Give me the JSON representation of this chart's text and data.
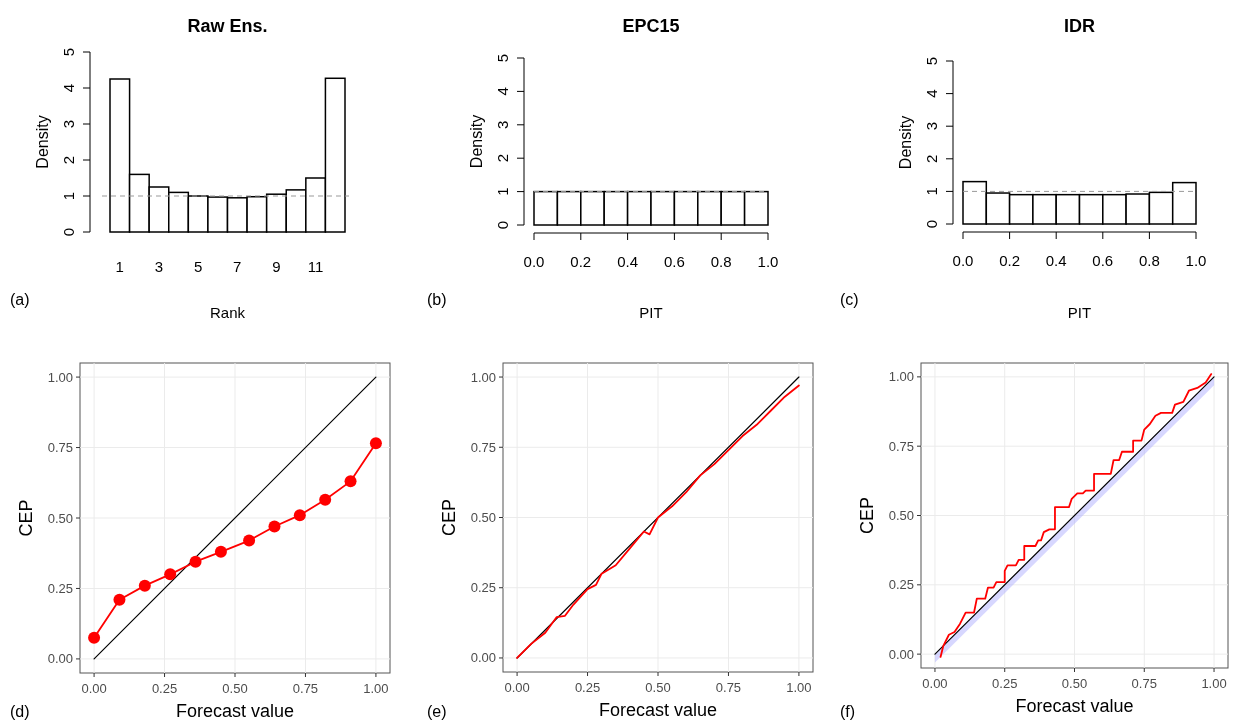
{
  "chart_data": [
    {
      "type": "bar",
      "title": "Raw Ens.",
      "xlabel": "Rank",
      "ylabel": "Density",
      "categories": [
        "1",
        null,
        "3",
        null,
        "5",
        null,
        "7",
        null,
        "9",
        null,
        "11",
        null
      ],
      "values": [
        4.25,
        1.6,
        1.25,
        1.1,
        1.0,
        0.97,
        0.95,
        0.98,
        1.05,
        1.17,
        1.5,
        4.27
      ],
      "color": "#ffffff",
      "ylim": [
        0,
        5
      ],
      "yticks": [
        0,
        1,
        2,
        3,
        4,
        5
      ],
      "ref_lines": [
        {
          "axis": "y",
          "value": 1,
          "color": "#999999",
          "line_style": "dashed"
        }
      ],
      "annotations": [
        "(a)"
      ]
    },
    {
      "type": "histogram",
      "title": "EPC15",
      "xlabel": "PIT",
      "ylabel": "Density",
      "bins": [
        0,
        0.1,
        0.2,
        0.3,
        0.4,
        0.5,
        0.6,
        0.7,
        0.8,
        0.9,
        1.0
      ],
      "values": [
        1.0,
        1.0,
        1.0,
        1.0,
        1.0,
        1.0,
        1.0,
        1.0,
        1.0,
        1.0
      ],
      "color": "#ffffff",
      "xlim": [
        0,
        1
      ],
      "xticks": [
        {
          "value": 0,
          "label": "0.0"
        },
        {
          "value": 0.2,
          "label": "0.2"
        },
        {
          "value": 0.4,
          "label": "0.4"
        },
        {
          "value": 0.6,
          "label": "0.6"
        },
        {
          "value": 0.8,
          "label": "0.8"
        },
        {
          "value": 1,
          "label": "1.0"
        }
      ],
      "ylim": [
        0,
        5
      ],
      "yticks": [
        0,
        1,
        2,
        3,
        4,
        5
      ],
      "ref_lines": [
        {
          "axis": "y",
          "value": 1,
          "color": "#999999",
          "line_style": "dashed"
        }
      ],
      "annotations": [
        "(b)"
      ]
    },
    {
      "type": "histogram",
      "title": "IDR",
      "xlabel": "PIT",
      "ylabel": "Density",
      "bins": [
        0,
        0.1,
        0.2,
        0.3,
        0.4,
        0.5,
        0.6,
        0.7,
        0.8,
        0.9,
        1.0
      ],
      "values": [
        1.3,
        0.95,
        0.9,
        0.9,
        0.9,
        0.9,
        0.9,
        0.92,
        0.97,
        1.27
      ],
      "color": "#ffffff",
      "xlim": [
        0,
        1
      ],
      "xticks": [
        {
          "value": 0,
          "label": "0.0"
        },
        {
          "value": 0.2,
          "label": "0.2"
        },
        {
          "value": 0.4,
          "label": "0.4"
        },
        {
          "value": 0.6,
          "label": "0.6"
        },
        {
          "value": 0.8,
          "label": "0.8"
        },
        {
          "value": 1,
          "label": "1.0"
        }
      ],
      "ylim": [
        0,
        5
      ],
      "yticks": [
        0,
        1,
        2,
        3,
        4,
        5
      ],
      "ref_lines": [
        {
          "axis": "y",
          "value": 1,
          "color": "#999999",
          "line_style": "dashed"
        }
      ],
      "annotations": [
        "(c)"
      ]
    },
    {
      "type": "line",
      "xlabel": "Forecast value",
      "ylabel": "CEP",
      "grid": true,
      "marker": "circle",
      "xlim": [
        -0.05,
        1.05
      ],
      "ylim": [
        -0.05,
        1.05
      ],
      "xticks": [
        {
          "value": 0,
          "label": "0.00"
        },
        {
          "value": 0.25,
          "label": "0.25"
        },
        {
          "value": 0.5,
          "label": "0.50"
        },
        {
          "value": 0.75,
          "label": "0.75"
        },
        {
          "value": 1,
          "label": "1.00"
        }
      ],
      "yticks": [
        {
          "value": 0,
          "label": "0.00"
        },
        {
          "value": 0.25,
          "label": "0.25"
        },
        {
          "value": 0.5,
          "label": "0.50"
        },
        {
          "value": 0.75,
          "label": "0.75"
        },
        {
          "value": 1,
          "label": "1.00"
        }
      ],
      "series": [
        {
          "color": "#000000",
          "marker": "none",
          "x": [
            0,
            1
          ],
          "values": [
            0,
            1
          ]
        },
        {
          "color": "#ff0000",
          "x": [
            0,
            0.09,
            0.18,
            0.27,
            0.36,
            0.45,
            0.55,
            0.64,
            0.73,
            0.82,
            0.91,
            1.0
          ],
          "values": [
            0.075,
            0.21,
            0.26,
            0.3,
            0.345,
            0.38,
            0.42,
            0.47,
            0.51,
            0.565,
            0.63,
            0.765
          ]
        }
      ],
      "annotations": [
        "(d)"
      ]
    },
    {
      "type": "line",
      "xlabel": "Forecast value",
      "ylabel": "CEP",
      "grid": true,
      "marker": "none",
      "xlim": [
        -0.05,
        1.05
      ],
      "ylim": [
        -0.05,
        1.05
      ],
      "xticks": [
        {
          "value": 0,
          "label": "0.00"
        },
        {
          "value": 0.25,
          "label": "0.25"
        },
        {
          "value": 0.5,
          "label": "0.50"
        },
        {
          "value": 0.75,
          "label": "0.75"
        },
        {
          "value": 1,
          "label": "1.00"
        }
      ],
      "yticks": [
        {
          "value": 0,
          "label": "0.00"
        },
        {
          "value": 0.25,
          "label": "0.25"
        },
        {
          "value": 0.5,
          "label": "0.50"
        },
        {
          "value": 0.75,
          "label": "0.75"
        },
        {
          "value": 1,
          "label": "1.00"
        }
      ],
      "series": [
        {
          "color": "#000000",
          "x": [
            0,
            1
          ],
          "values": [
            0,
            1
          ]
        },
        {
          "color": "#ff0000",
          "x": [
            0,
            0.05,
            0.1,
            0.14,
            0.17,
            0.2,
            0.25,
            0.28,
            0.3,
            0.35,
            0.4,
            0.45,
            0.47,
            0.5,
            0.55,
            0.6,
            0.65,
            0.7,
            0.75,
            0.8,
            0.85,
            0.9,
            0.95,
            1.0
          ],
          "values": [
            0,
            0.05,
            0.09,
            0.145,
            0.15,
            0.19,
            0.245,
            0.26,
            0.3,
            0.33,
            0.39,
            0.45,
            0.44,
            0.5,
            0.54,
            0.59,
            0.65,
            0.69,
            0.74,
            0.79,
            0.83,
            0.88,
            0.93,
            0.97
          ]
        }
      ],
      "annotations": [
        "(e)"
      ]
    },
    {
      "type": "line",
      "xlabel": "Forecast value",
      "ylabel": "CEP",
      "grid": true,
      "marker": "none",
      "xlim": [
        -0.05,
        1.05
      ],
      "ylim": [
        -0.05,
        1.05
      ],
      "xticks": [
        {
          "value": 0,
          "label": "0.00"
        },
        {
          "value": 0.25,
          "label": "0.25"
        },
        {
          "value": 0.5,
          "label": "0.50"
        },
        {
          "value": 0.75,
          "label": "0.75"
        },
        {
          "value": 1,
          "label": "1.00"
        }
      ],
      "yticks": [
        {
          "value": 0,
          "label": "0.00"
        },
        {
          "value": 0.25,
          "label": "0.25"
        },
        {
          "value": 0.5,
          "label": "0.50"
        },
        {
          "value": 0.75,
          "label": "0.75"
        },
        {
          "value": 1,
          "label": "1.00"
        }
      ],
      "series": [
        {
          "color": "#000000",
          "x": [
            0,
            1
          ],
          "values": [
            0,
            1
          ],
          "lower": [
            -0.03,
            0.97
          ],
          "upper": [
            0,
            1
          ]
        },
        {
          "color": "#ff0000",
          "x": [
            0.02,
            0.03,
            0.05,
            0.07,
            0.09,
            0.11,
            0.14,
            0.15,
            0.18,
            0.19,
            0.21,
            0.22,
            0.25,
            0.25,
            0.26,
            0.29,
            0.3,
            0.32,
            0.32,
            0.36,
            0.37,
            0.38,
            0.39,
            0.41,
            0.43,
            0.43,
            0.48,
            0.49,
            0.51,
            0.53,
            0.54,
            0.57,
            0.57,
            0.63,
            0.64,
            0.66,
            0.67,
            0.71,
            0.71,
            0.74,
            0.75,
            0.77,
            0.79,
            0.81,
            0.85,
            0.86,
            0.89,
            0.91,
            0.94,
            0.97,
            0.99
          ],
          "values": [
            -0.01,
            0.03,
            0.07,
            0.08,
            0.11,
            0.15,
            0.15,
            0.2,
            0.2,
            0.24,
            0.24,
            0.26,
            0.26,
            0.3,
            0.32,
            0.32,
            0.34,
            0.34,
            0.39,
            0.39,
            0.41,
            0.41,
            0.44,
            0.45,
            0.45,
            0.53,
            0.53,
            0.56,
            0.58,
            0.58,
            0.59,
            0.59,
            0.65,
            0.65,
            0.7,
            0.7,
            0.73,
            0.73,
            0.77,
            0.77,
            0.81,
            0.83,
            0.86,
            0.87,
            0.87,
            0.9,
            0.91,
            0.95,
            0.96,
            0.98,
            1.01
          ]
        }
      ],
      "annotations": [
        "(f)"
      ]
    }
  ]
}
